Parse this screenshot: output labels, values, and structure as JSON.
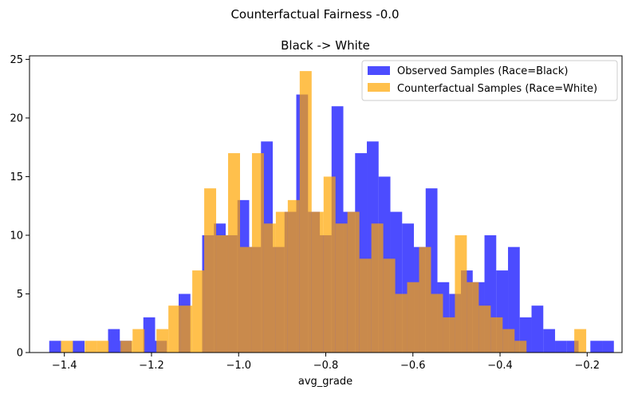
{
  "chart_data": {
    "type": "histogram",
    "suptitle": "Counterfactual Fairness -0.0",
    "title": "Black -> White",
    "xlabel": "avg_grade",
    "ylabel": "",
    "xlim": [
      -1.48,
      -0.12
    ],
    "ylim": [
      0,
      25.3
    ],
    "xticks": [
      -1.4,
      -1.2,
      -1.0,
      -0.8,
      -0.6,
      -0.4,
      -0.2
    ],
    "xtick_labels": [
      "−1.4",
      "−1.2",
      "−1.0",
      "−0.8",
      "−0.6",
      "−0.4",
      "−0.2"
    ],
    "yticks": [
      0,
      5,
      10,
      15,
      20,
      25
    ],
    "ytick_labels": [
      "0",
      "5",
      "10",
      "15",
      "20",
      "25"
    ],
    "grid": false,
    "legend_position": "top-right",
    "series": [
      {
        "name": "Observed Samples (Race=Black)",
        "color": "#0000ff",
        "opacity": 0.7,
        "bins": [
          [
            -1.4347,
            -1.4077,
            1
          ],
          [
            -1.3807,
            -1.3537,
            1
          ],
          [
            -1.2997,
            -1.2727,
            2
          ],
          [
            -1.2727,
            -1.2457,
            1
          ],
          [
            -1.2187,
            -1.1917,
            3
          ],
          [
            -1.1917,
            -1.1647,
            1
          ],
          [
            -1.1377,
            -1.1107,
            5
          ],
          [
            -1.0837,
            -1.0567,
            10
          ],
          [
            -1.0567,
            -1.0297,
            11
          ],
          [
            -1.0297,
            -1.0027,
            10
          ],
          [
            -1.0027,
            -0.9757,
            13
          ],
          [
            -0.9757,
            -0.9487,
            9
          ],
          [
            -0.9487,
            -0.9217,
            18
          ],
          [
            -0.9217,
            -0.8947,
            9
          ],
          [
            -0.8947,
            -0.8677,
            12
          ],
          [
            -0.8677,
            -0.8407,
            22
          ],
          [
            -0.8407,
            -0.8137,
            12
          ],
          [
            -0.8137,
            -0.7867,
            10
          ],
          [
            -0.7867,
            -0.7597,
            21
          ],
          [
            -0.7597,
            -0.7327,
            12
          ],
          [
            -0.7327,
            -0.7057,
            17
          ],
          [
            -0.7057,
            -0.6787,
            18
          ],
          [
            -0.6787,
            -0.6517,
            15
          ],
          [
            -0.6517,
            -0.6247,
            12
          ],
          [
            -0.6247,
            -0.5977,
            11
          ],
          [
            -0.5977,
            -0.5707,
            9
          ],
          [
            -0.5707,
            -0.5437,
            14
          ],
          [
            -0.5437,
            -0.5167,
            6
          ],
          [
            -0.5167,
            -0.4897,
            5
          ],
          [
            -0.4897,
            -0.4627,
            7
          ],
          [
            -0.4627,
            -0.4357,
            6
          ],
          [
            -0.4357,
            -0.4087,
            10
          ],
          [
            -0.4087,
            -0.3817,
            7
          ],
          [
            -0.3817,
            -0.3547,
            9
          ],
          [
            -0.3547,
            -0.3277,
            3
          ],
          [
            -0.3277,
            -0.3007,
            4
          ],
          [
            -0.3007,
            -0.2737,
            2
          ],
          [
            -0.2737,
            -0.2467,
            1
          ],
          [
            -0.2467,
            -0.2197,
            1
          ],
          [
            -0.1927,
            -0.1657,
            1
          ],
          [
            -0.1657,
            -0.1387,
            1
          ]
        ]
      },
      {
        "name": "Counterfactual Samples (Race=White)",
        "color": "#ffa500",
        "opacity": 0.7,
        "bins": [
          [
            -1.4078,
            -1.3804,
            1
          ],
          [
            -1.353,
            -1.3256,
            1
          ],
          [
            -1.3256,
            -1.2982,
            1
          ],
          [
            -1.2708,
            -1.2434,
            1
          ],
          [
            -1.2434,
            -1.216,
            2
          ],
          [
            -1.1886,
            -1.1612,
            2
          ],
          [
            -1.1612,
            -1.1338,
            4
          ],
          [
            -1.1338,
            -1.1064,
            4
          ],
          [
            -1.1064,
            -1.079,
            7
          ],
          [
            -1.079,
            -1.0516,
            14
          ],
          [
            -1.0516,
            -1.0242,
            10
          ],
          [
            -1.0242,
            -0.9968,
            17
          ],
          [
            -0.9968,
            -0.9694,
            9
          ],
          [
            -0.9694,
            -0.942,
            17
          ],
          [
            -0.942,
            -0.9146,
            11
          ],
          [
            -0.9146,
            -0.8872,
            12
          ],
          [
            -0.8872,
            -0.8598,
            13
          ],
          [
            -0.8598,
            -0.8324,
            24
          ],
          [
            -0.8324,
            -0.805,
            12
          ],
          [
            -0.805,
            -0.7776,
            15
          ],
          [
            -0.7776,
            -0.7502,
            11
          ],
          [
            -0.7502,
            -0.7228,
            12
          ],
          [
            -0.7228,
            -0.6954,
            8
          ],
          [
            -0.6954,
            -0.668,
            11
          ],
          [
            -0.668,
            -0.6406,
            8
          ],
          [
            -0.6406,
            -0.6132,
            5
          ],
          [
            -0.6132,
            -0.5858,
            6
          ],
          [
            -0.5858,
            -0.5584,
            9
          ],
          [
            -0.5584,
            -0.531,
            5
          ],
          [
            -0.531,
            -0.5036,
            3
          ],
          [
            -0.5036,
            -0.4762,
            10
          ],
          [
            -0.4762,
            -0.4488,
            6
          ],
          [
            -0.4488,
            -0.4214,
            4
          ],
          [
            -0.4214,
            -0.394,
            3
          ],
          [
            -0.394,
            -0.3666,
            2
          ],
          [
            -0.3666,
            -0.3392,
            1
          ],
          [
            -0.2296,
            -0.2022,
            2
          ]
        ]
      }
    ]
  }
}
